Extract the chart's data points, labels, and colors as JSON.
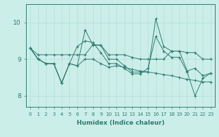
{
  "xlabel": "Humidex (Indice chaleur)",
  "background_color": "#cceee8",
  "line_color": "#2d7a70",
  "grid_color": "#b0ddd8",
  "xlim": [
    -0.5,
    23.5
  ],
  "ylim": [
    7.7,
    10.5
  ],
  "yticks": [
    8,
    9,
    10
  ],
  "xticks": [
    0,
    1,
    2,
    3,
    4,
    5,
    6,
    7,
    8,
    9,
    10,
    11,
    12,
    13,
    14,
    15,
    16,
    17,
    18,
    19,
    20,
    21,
    22,
    23
  ],
  "series": [
    [
      9.3,
      9.0,
      8.88,
      8.88,
      8.35,
      8.88,
      8.82,
      9.8,
      9.38,
      9.38,
      9.0,
      9.0,
      8.82,
      8.65,
      8.65,
      8.65,
      10.1,
      9.35,
      9.22,
      9.22,
      8.68,
      8.75,
      8.55,
      8.62
    ],
    [
      9.3,
      9.0,
      8.88,
      8.88,
      8.35,
      8.88,
      9.35,
      9.5,
      9.45,
      9.18,
      8.88,
      8.88,
      8.75,
      8.6,
      8.6,
      8.75,
      9.62,
      9.22,
      9.05,
      9.05,
      8.65,
      8.0,
      8.48,
      8.62
    ],
    [
      9.3,
      9.0,
      8.88,
      8.88,
      8.35,
      8.88,
      8.82,
      9.0,
      9.0,
      8.88,
      8.78,
      8.82,
      8.78,
      8.72,
      8.68,
      8.65,
      8.62,
      8.58,
      8.55,
      8.5,
      8.45,
      8.42,
      8.38,
      8.38
    ],
    [
      9.3,
      9.12,
      9.12,
      9.12,
      9.12,
      9.12,
      9.12,
      9.12,
      9.4,
      9.38,
      9.12,
      9.12,
      9.12,
      9.05,
      9.0,
      9.0,
      9.0,
      9.0,
      9.22,
      9.22,
      9.18,
      9.18,
      9.0,
      9.0
    ]
  ]
}
